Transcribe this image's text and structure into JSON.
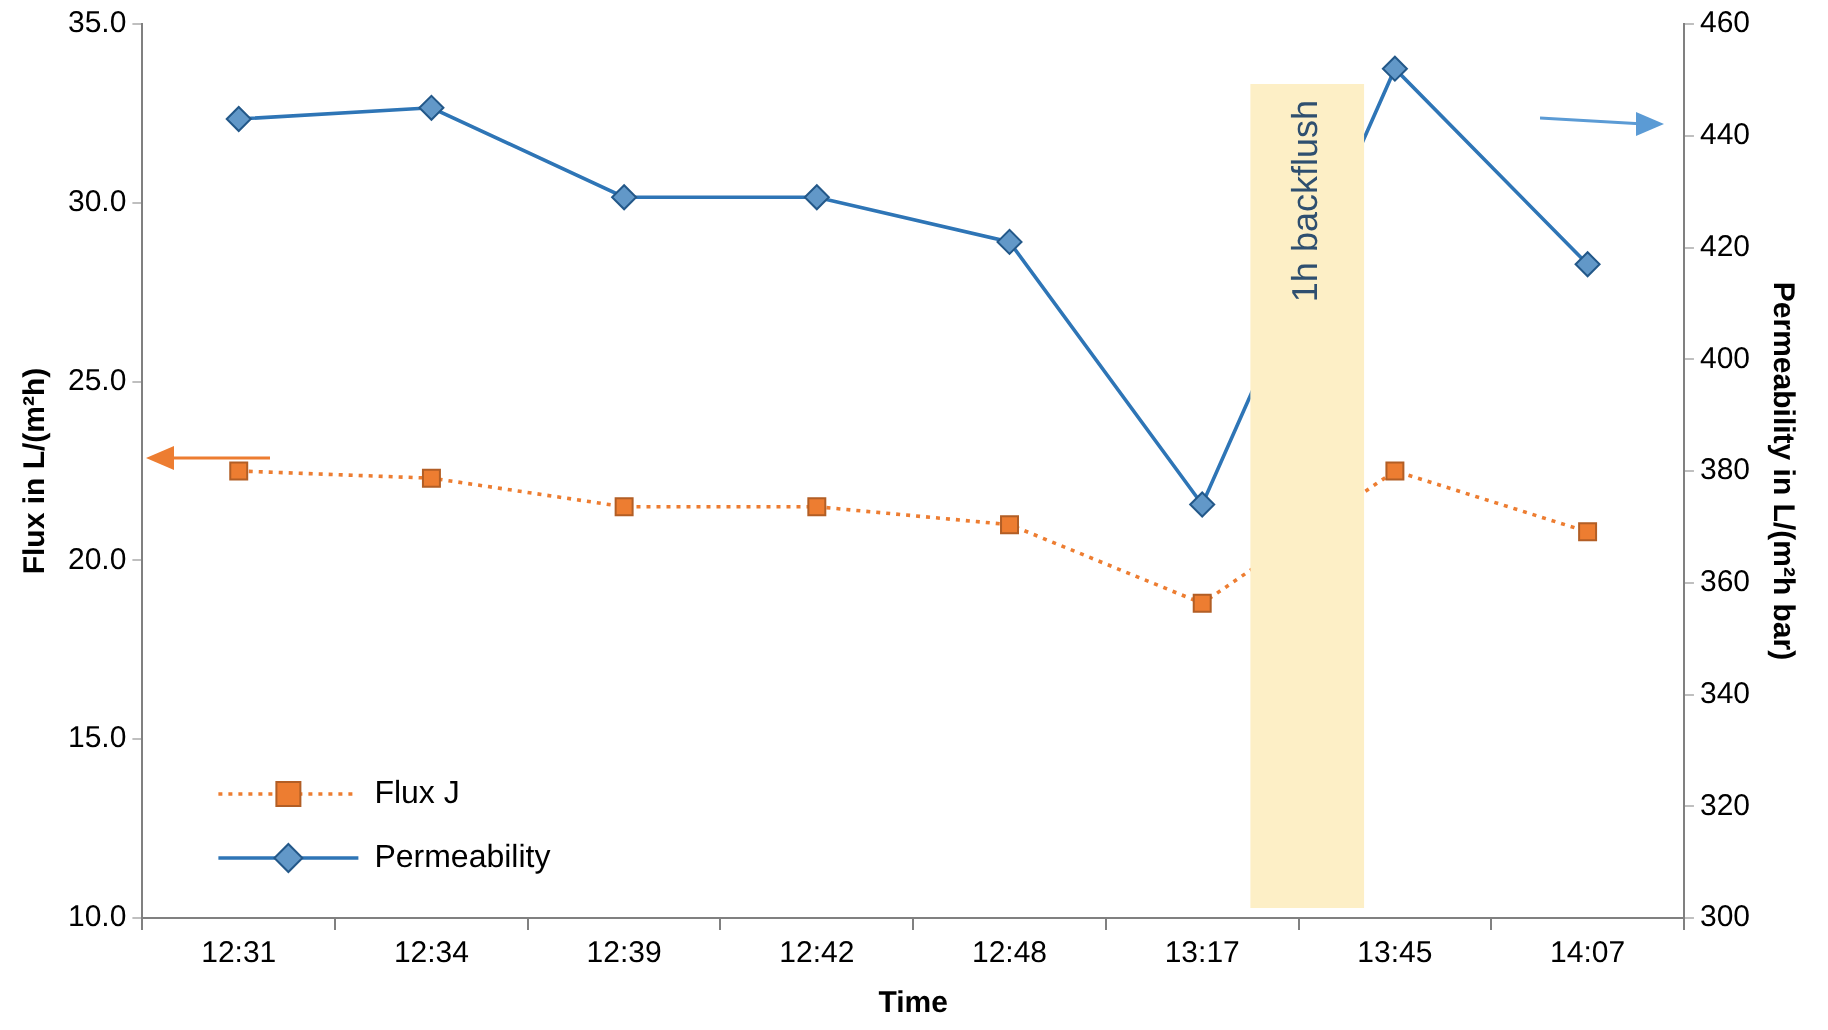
{
  "chart_data": {
    "type": "line",
    "xlabel": "Time",
    "ylabel": "Flux in L/(m²h)",
    "y2label": "Permeability in L/(m²h bar)",
    "categories": [
      "12:31",
      "12:34",
      "12:39",
      "12:42",
      "12:48",
      "13:17",
      "13:45",
      "14:07"
    ],
    "series": [
      {
        "name": "Flux J",
        "color": "#ed7d31",
        "marker": "square",
        "line_style": "dotted",
        "values": [
          22.5,
          22.3,
          21.5,
          21.5,
          21.0,
          18.8,
          22.5,
          20.8
        ]
      },
      {
        "name": "Permeability",
        "color": "#2e75b6",
        "marker": "diamond",
        "line_style": "solid",
        "axis": "y2",
        "values": [
          443,
          445,
          429,
          429,
          421,
          374,
          452,
          417
        ]
      }
    ],
    "ylim": [
      10,
      35
    ],
    "yticks": [
      {
        "value": 10,
        "label": "10.0"
      },
      {
        "value": 15,
        "label": "15.0"
      },
      {
        "value": 20,
        "label": "20.0"
      },
      {
        "value": 25,
        "label": "25.0"
      },
      {
        "value": 30,
        "label": "30.0"
      },
      {
        "value": 35,
        "label": "35.0"
      }
    ],
    "y2lim": [
      300,
      460
    ],
    "y2ticks": [
      300,
      320,
      340,
      360,
      380,
      400,
      420,
      440,
      460
    ],
    "bands": [
      {
        "axis": "x",
        "from": "13:17",
        "to": "13:45",
        "label": "1h backflush",
        "color": "#fdefc6"
      }
    ],
    "grid": false,
    "legend": "bottom left"
  }
}
